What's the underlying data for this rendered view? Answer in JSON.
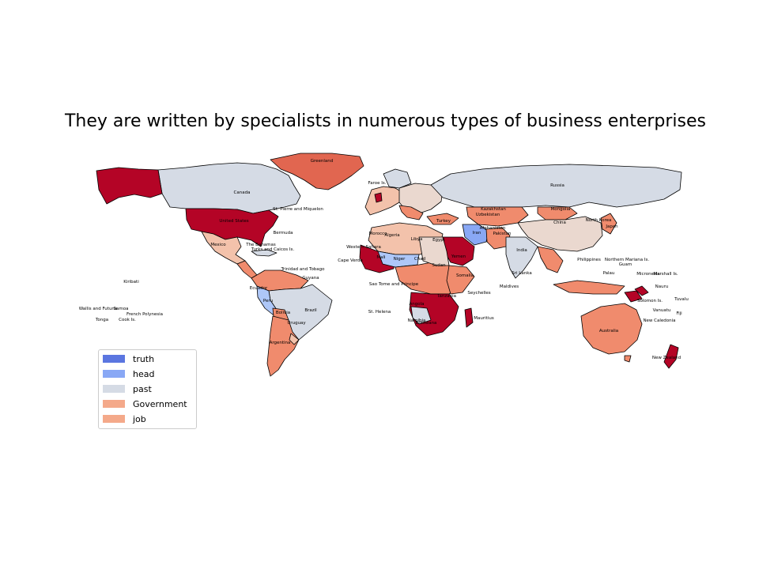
{
  "title": "They are written by specialists in numerous types of business enterprises",
  "legend": [
    {
      "label": "truth",
      "color": "#5b76e0"
    },
    {
      "label": "head",
      "color": "#89a8f5"
    },
    {
      "label": "past",
      "color": "#d5dbe5"
    },
    {
      "label": "Government",
      "color": "#f4a98a"
    },
    {
      "label": "job",
      "color": "#f4a98a"
    }
  ],
  "palette": {
    "dark_red": "#b40426",
    "red": "#e16650",
    "salmon": "#f08b6d",
    "light_salmon": "#f3c2ab",
    "pink_beige": "#ead8cf",
    "gray_blue": "#d5dbe5",
    "light_blue": "#aec7f8",
    "blue": "#89a8f5"
  },
  "places": {
    "greenland": "Greenland",
    "canada": "Canada",
    "united_states": "United States",
    "mexico": "Mexico",
    "russia": "Russia",
    "china": "China",
    "mongolia": "Mongolia",
    "kazakhstan": "Kazakhstan",
    "india": "India",
    "australia": "Australia",
    "new_zealand": "New Zealand",
    "brazil": "Brazil",
    "argentina": "Argentina",
    "bolivia": "Bolivia",
    "peru": "Peru",
    "libya": "Libya",
    "algeria": "Algeria",
    "egypt": "Egypt",
    "sudan": "Sudan",
    "chad": "Chad",
    "niger": "Niger",
    "mali": "Mali",
    "iran": "Iran",
    "turkey": "Turkey",
    "namibia": "Namibia",
    "angola": "Angola",
    "tanzania": "Tanzania",
    "botswana": "Botswana",
    "somalia": "Somalia",
    "seychelles": "Seychelles",
    "maldives": "Maldives",
    "sri_lanka": "Sri Lanka",
    "philippines": "Philippines",
    "northern_mariana": "Northern Mariana Is.",
    "guam": "Guam",
    "palau": "Palau",
    "micronesia": "Micronesia",
    "marshall": "Marshall Is.",
    "nauru": "Nauru",
    "kiribati": "Kiribati",
    "tuvalu": "Tuvalu",
    "vanuatu": "Vanuatu",
    "new_caledonia": "New Caledonia",
    "solomon": "Solomon Is.",
    "fiji": "Fiji",
    "samoa": "Samoa",
    "wallis": "Wallis and Futuna",
    "tonga": "Tonga",
    "cook": "Cook Is.",
    "french_polynesia": "French Polynesia",
    "bermuda": "Bermuda",
    "bahamas": "The Bahamas",
    "turks": "Turks and Caicos Is.",
    "st_pierre": "St. Pierre and Miquelon",
    "trinidad": "Trinidad and Tobago",
    "guyana": "Guyana",
    "ecuador": "Ecuador",
    "uruguay": "Uruguay",
    "st_helena": "St. Helena",
    "faroe": "Faroe Is.",
    "western_sahara": "Western Sahara",
    "morocco": "Morocco",
    "cape_verde": "Cape Verde",
    "sao_tome": "Sao Tome and Principe",
    "mauritius": "Mauritius",
    "north_korea": "North Korea",
    "japan": "Japan",
    "pakistan": "Pakistan",
    "afghanistan": "Afghanistan",
    "uzbekistan": "Uzbekistan",
    "yemen": "Yemen"
  }
}
